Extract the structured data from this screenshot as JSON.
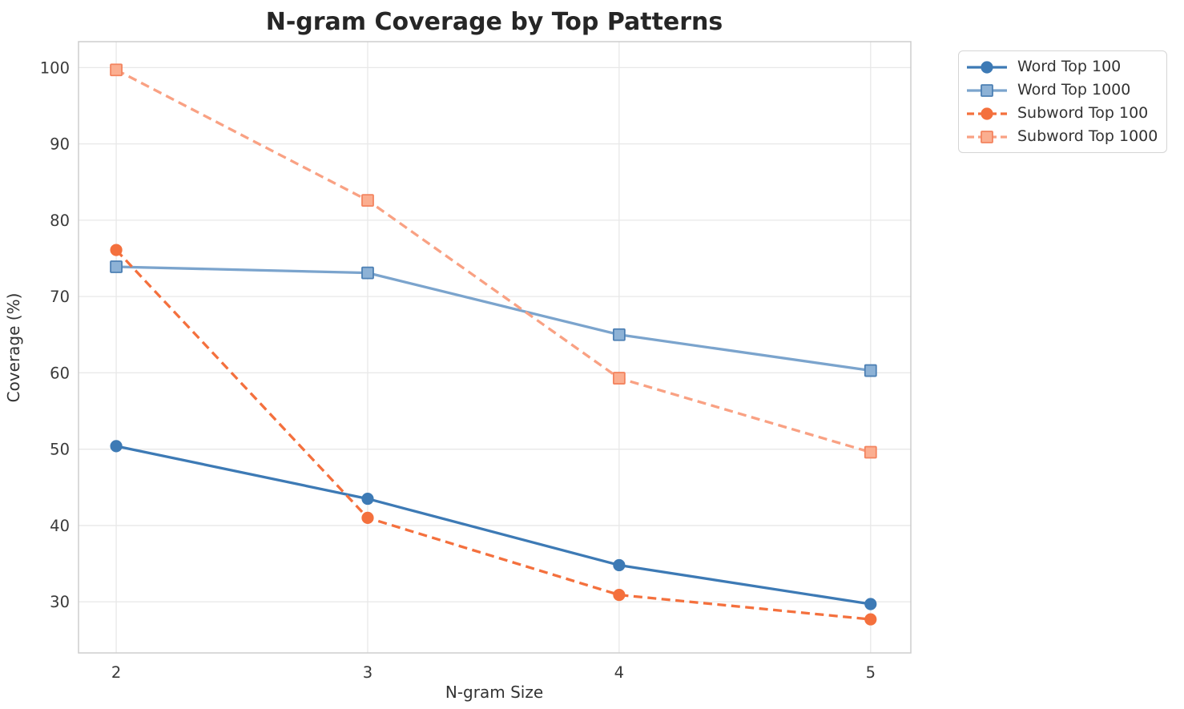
{
  "figure": {
    "background": "#ffffff"
  },
  "chart_data": {
    "type": "line",
    "title": "N-gram Coverage by Top Patterns",
    "xlabel": "N-gram Size",
    "ylabel": "Coverage (%)",
    "x": [
      2,
      3,
      4,
      5
    ],
    "x_tick_labels": [
      "2",
      "3",
      "4",
      "5"
    ],
    "y_ticks": [
      100,
      90,
      80,
      70,
      60,
      50,
      40,
      30
    ],
    "xlim": [
      1.85,
      5.16
    ],
    "ylim": [
      23.3,
      103.4
    ],
    "grid": true,
    "legend_position": "upper-right-outside",
    "series": [
      {
        "name": "Word Top 100",
        "color": "#3d7ab5",
        "marker": "circle",
        "marker_fill": "#3d7ab5",
        "marker_edge": "#3d7ab5",
        "dashed": false,
        "values": [
          50.4,
          43.5,
          34.8,
          29.7
        ]
      },
      {
        "name": "Word Top 1000",
        "color": "#7ba4cd",
        "marker": "square",
        "marker_fill": "#8db2d6",
        "marker_edge": "#4d80b4",
        "dashed": false,
        "values": [
          73.9,
          73.1,
          65.0,
          60.3
        ]
      },
      {
        "name": "Subword Top 100",
        "color": "#f4703d",
        "marker": "circle",
        "marker_fill": "#f4703d",
        "marker_edge": "#f4703d",
        "dashed": true,
        "values": [
          76.1,
          41.0,
          30.9,
          27.7
        ]
      },
      {
        "name": "Subword Top 1000",
        "color": "#f9a183",
        "marker": "square",
        "marker_fill": "#fbae90",
        "marker_edge": "#f3845f",
        "dashed": true,
        "values": [
          99.7,
          82.6,
          59.3,
          49.6
        ]
      }
    ],
    "style_colors": {
      "grid": "#e8e8e8",
      "spine": "#cdcdcd",
      "tick_label": "#3a3a3a",
      "axis_label": "#333333",
      "title": "#262626",
      "legend_text": "#333333",
      "legend_border": "#d5d5d5",
      "legend_bg": "#ffffff"
    }
  }
}
